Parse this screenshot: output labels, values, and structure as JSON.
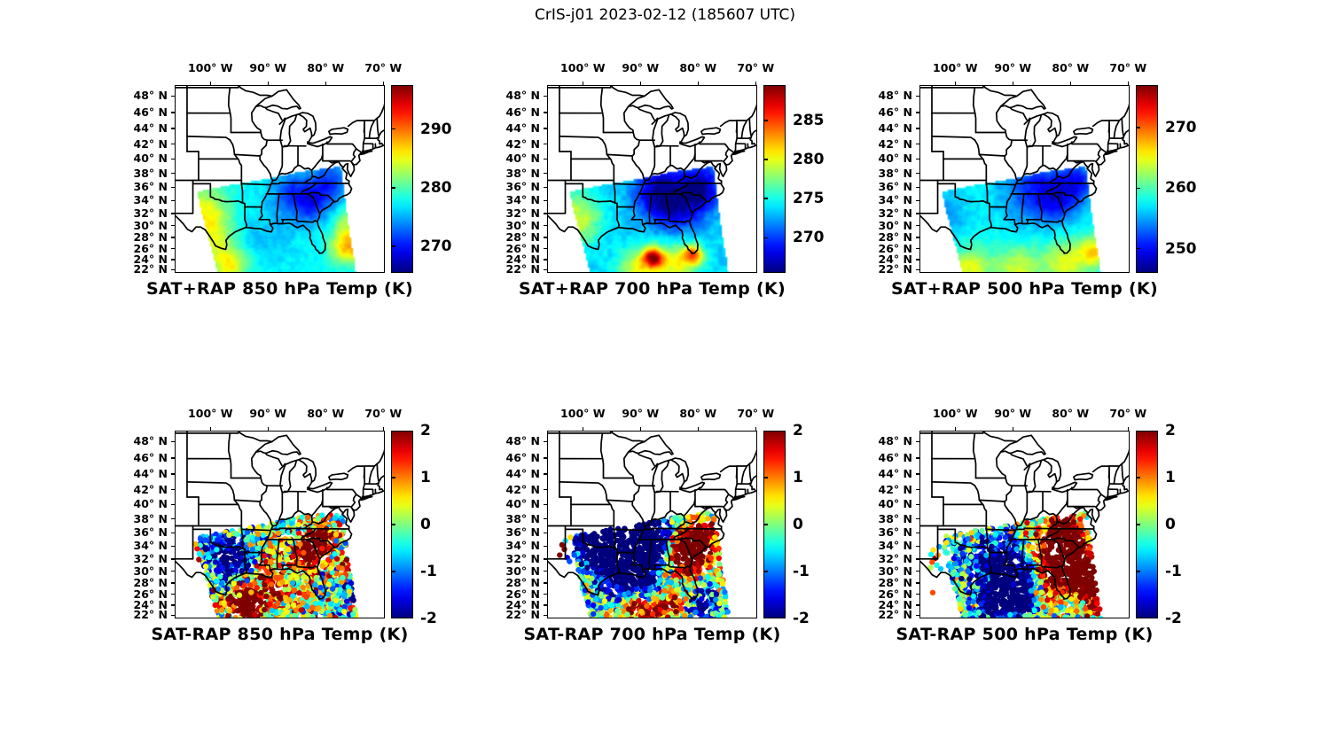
{
  "title": "CrIS-j01 2023-02-12 (185607 UTC)",
  "colors": {
    "outline": "#000000",
    "background": "#ffffff",
    "colormap_low": "#000080",
    "colormap_high": "#800000"
  },
  "axes": {
    "lon_labels": [
      "100° W",
      "90° W",
      "80° W",
      "70° W"
    ],
    "lon_values": [
      -100,
      -90,
      -80,
      -70
    ],
    "lat_labels": [
      "48° N",
      "46° N",
      "44° N",
      "42° N",
      "40° N",
      "38° N",
      "36° N",
      "34° N",
      "32° N",
      "30° N",
      "28° N",
      "26° N",
      "24° N",
      "22° N"
    ],
    "lat_values": [
      48,
      46,
      44,
      42,
      40,
      38,
      36,
      34,
      32,
      30,
      28,
      26,
      24,
      22
    ]
  },
  "chart_data": {
    "type": "heatmap",
    "colormap": "jet",
    "grid": false,
    "swath_polygon_lonlat": [
      [
        -102.3,
        35.35
      ],
      [
        -96.5,
        36.3
      ],
      [
        -90.0,
        37.2
      ],
      [
        -84.5,
        38.2
      ],
      [
        -77.2,
        38.95
      ],
      [
        -76.6,
        35.0
      ],
      [
        -75.9,
        30.0
      ],
      [
        -74.9,
        24.0
      ],
      [
        -74.6,
        21.0
      ],
      [
        -98.6,
        21.0
      ],
      [
        -99.3,
        24.0
      ],
      [
        -100.6,
        29.0
      ],
      [
        -101.6,
        32.5
      ]
    ],
    "panels": [
      {
        "id": "sat-plus-rap-850",
        "type": "heatmap",
        "row": 0,
        "col": 0,
        "title": "SAT+RAP 850 hPa Temp (K)",
        "pressure_hPa": 850,
        "units": "K",
        "colorbar": {
          "vmin": 265.5,
          "vmax": 297.5,
          "ticks": [
            290,
            280,
            270
          ],
          "tick_labels": [
            "290",
            "280",
            "270"
          ]
        },
        "base_value": 277.5,
        "noise_amp": 0.9,
        "field_regions": [
          {
            "lon": -101.0,
            "lat": 31.5,
            "sigma": 3.2,
            "delta": 8
          },
          {
            "lon": -99.5,
            "lat": 26.5,
            "sigma": 2.6,
            "delta": 4
          },
          {
            "lon": -96.5,
            "lat": 22.8,
            "sigma": 2.2,
            "delta": 8
          },
          {
            "lon": -82.5,
            "lat": 34.0,
            "sigma": 2.6,
            "delta": -7
          },
          {
            "lon": -78.8,
            "lat": 36.8,
            "sigma": 2.2,
            "delta": -5
          },
          {
            "lon": -86.5,
            "lat": 35.0,
            "sigma": 2.4,
            "delta": -4
          },
          {
            "lon": -90.0,
            "lat": 28.0,
            "sigma": 3.5,
            "delta": -2
          },
          {
            "lon": -75.8,
            "lat": 26.5,
            "sigma": 2.2,
            "delta": 11
          },
          {
            "lon": -76.5,
            "lat": 31.0,
            "sigma": 1.5,
            "delta": 4
          }
        ],
        "outlier_points": []
      },
      {
        "id": "sat-plus-rap-700",
        "type": "heatmap",
        "row": 0,
        "col": 1,
        "title": "SAT+RAP 700 hPa Temp (K)",
        "pressure_hPa": 700,
        "units": "K",
        "colorbar": {
          "vmin": 265.5,
          "vmax": 289.5,
          "ticks": [
            285,
            280,
            275,
            270
          ],
          "tick_labels": [
            "285",
            "280",
            "275",
            "270"
          ]
        },
        "base_value": 273.5,
        "noise_amp": 0.8,
        "field_regions": [
          {
            "lon": -101.0,
            "lat": 31.0,
            "sigma": 3.0,
            "delta": 6
          },
          {
            "lon": -83.5,
            "lat": 33.5,
            "sigma": 3.2,
            "delta": -6.5
          },
          {
            "lon": -79.3,
            "lat": 36.0,
            "sigma": 2.3,
            "delta": -6
          },
          {
            "lon": -87.5,
            "lat": 35.5,
            "sigma": 2.6,
            "delta": -5
          },
          {
            "lon": -93.0,
            "lat": 27.5,
            "sigma": 3.0,
            "delta": -0.5
          },
          {
            "lon": -90.0,
            "lat": 22.5,
            "sigma": 2.8,
            "delta": 6.5
          },
          {
            "lon": -83.5,
            "lat": 23.0,
            "sigma": 2.8,
            "delta": 6
          },
          {
            "lon": -87.7,
            "lat": 24.4,
            "sigma": 1.2,
            "delta": 12
          },
          {
            "lon": -80.8,
            "lat": 24.9,
            "sigma": 1.3,
            "delta": 9
          }
        ],
        "outlier_points": []
      },
      {
        "id": "sat-plus-rap-500",
        "type": "heatmap",
        "row": 0,
        "col": 2,
        "title": "SAT+RAP 500 hPa Temp (K)",
        "pressure_hPa": 500,
        "units": "K",
        "colorbar": {
          "vmin": 246,
          "vmax": 277,
          "ticks": [
            270,
            260,
            250
          ],
          "tick_labels": [
            "270",
            "260",
            "250"
          ]
        },
        "base_value": 257.5,
        "noise_amp": 0.85,
        "field_regions": [
          {
            "lon": -87.0,
            "lat": 35.5,
            "sigma": 3.6,
            "delta": -5.5
          },
          {
            "lon": -82.0,
            "lat": 34.5,
            "sigma": 2.8,
            "delta": -6.5
          },
          {
            "lon": -78.5,
            "lat": 36.8,
            "sigma": 2.0,
            "delta": -5.5
          },
          {
            "lon": -102.0,
            "lat": 31.5,
            "sigma": 2.8,
            "delta": -3
          },
          {
            "lon": -97.5,
            "lat": 22.5,
            "sigma": 2.6,
            "delta": 7
          },
          {
            "lon": -89.0,
            "lat": 22.0,
            "sigma": 3.0,
            "delta": 6.5
          },
          {
            "lon": -80.5,
            "lat": 23.5,
            "sigma": 2.8,
            "delta": 7
          },
          {
            "lon": -75.5,
            "lat": 25.5,
            "sigma": 2.0,
            "delta": 8
          }
        ],
        "outlier_points": []
      },
      {
        "id": "sat-minus-rap-850",
        "type": "scatter",
        "row": 1,
        "col": 0,
        "title": "SAT-RAP 850 hPa Temp (K)",
        "pressure_hPa": 850,
        "units": "K",
        "colorbar": {
          "vmin": -2,
          "vmax": 2,
          "ticks": [
            2,
            1,
            0,
            -1,
            -2
          ],
          "tick_labels": [
            "2",
            "1",
            "0",
            "-1",
            "-2"
          ]
        },
        "base_value": 0.1,
        "noise_amp": 1.5,
        "marker_radius_px": 3.2,
        "n_points": 1700,
        "field_regions": [
          {
            "lon": -95.5,
            "lat": 31.5,
            "sigma": 2.6,
            "delta": -2.6
          },
          {
            "lon": -98.5,
            "lat": 33.8,
            "sigma": 1.8,
            "delta": -2
          },
          {
            "lon": -82.6,
            "lat": 33.2,
            "sigma": 1.9,
            "delta": 3.2
          },
          {
            "lon": -80.3,
            "lat": 35.2,
            "sigma": 1.5,
            "delta": 2
          },
          {
            "lon": -90.0,
            "lat": 27.5,
            "sigma": 3.0,
            "delta": 1.8
          },
          {
            "lon": -95.0,
            "lat": 25.5,
            "sigma": 2.0,
            "delta": 1.5
          },
          {
            "lon": -93.5,
            "lat": 23.2,
            "sigma": 1.6,
            "delta": 2.6
          },
          {
            "lon": -75.5,
            "lat": 31.0,
            "sigma": 1.5,
            "delta": 2
          },
          {
            "lon": -75.6,
            "lat": 27.5,
            "sigma": 1.5,
            "delta": -2
          }
        ],
        "outlier_points": [
          {
            "lon": -102.3,
            "lat": 33.6,
            "value": 1.5
          },
          {
            "lon": -101.9,
            "lat": 32.8,
            "value": -0.5
          },
          {
            "lon": -102.6,
            "lat": 34.3,
            "value": 0.8
          },
          {
            "lon": -100.9,
            "lat": 34.9,
            "value": -1.2
          },
          {
            "lon": -102.0,
            "lat": 31.9,
            "value": 1.8
          }
        ]
      },
      {
        "id": "sat-minus-rap-700",
        "type": "scatter",
        "row": 1,
        "col": 1,
        "title": "SAT-RAP 700 hPa Temp (K)",
        "pressure_hPa": 700,
        "units": "K",
        "colorbar": {
          "vmin": -2,
          "vmax": 2,
          "ticks": [
            2,
            1,
            0,
            -1,
            -2
          ],
          "tick_labels": [
            "2",
            "1",
            "0",
            "-1",
            "-2"
          ]
        },
        "base_value": 0,
        "noise_amp": 1.1,
        "marker_radius_px": 3.2,
        "n_points": 1700,
        "field_regions": [
          {
            "lon": -94.0,
            "lat": 33.0,
            "sigma": 3.6,
            "delta": -3.6
          },
          {
            "lon": -98.0,
            "lat": 34.5,
            "sigma": 2.2,
            "delta": -3
          },
          {
            "lon": -88.5,
            "lat": 35.5,
            "sigma": 2.8,
            "delta": -3.2
          },
          {
            "lon": -91.0,
            "lat": 30.5,
            "sigma": 2.5,
            "delta": -2
          },
          {
            "lon": -92.0,
            "lat": 27.0,
            "sigma": 3.0,
            "delta": -1.4
          },
          {
            "lon": -82.0,
            "lat": 32.8,
            "sigma": 2.2,
            "delta": 3.8
          },
          {
            "lon": -79.8,
            "lat": 34.8,
            "sigma": 1.8,
            "delta": 3.3
          },
          {
            "lon": -91.0,
            "lat": 24.0,
            "sigma": 1.7,
            "delta": 2.8
          },
          {
            "lon": -84.8,
            "lat": 24.2,
            "sigma": 1.5,
            "delta": 2.4
          },
          {
            "lon": -88.0,
            "lat": 22.3,
            "sigma": 1.4,
            "delta": 2.4
          },
          {
            "lon": -78.8,
            "lat": 23.8,
            "sigma": 2.0,
            "delta": -2.2
          }
        ],
        "outlier_points": [
          {
            "lon": -103.6,
            "lat": 34.2,
            "value": 2
          },
          {
            "lon": -103.2,
            "lat": 33.5,
            "value": 2
          },
          {
            "lon": -102.7,
            "lat": 32.2,
            "value": -1.6
          },
          {
            "lon": -104.0,
            "lat": 32.6,
            "value": 2
          },
          {
            "lon": -102.3,
            "lat": 31.6,
            "value": -1.2
          },
          {
            "lon": -103.0,
            "lat": 34.8,
            "value": -0.6
          }
        ]
      },
      {
        "id": "sat-minus-rap-500",
        "type": "scatter",
        "row": 1,
        "col": 2,
        "title": "SAT-RAP 500 hPa Temp (K)",
        "pressure_hPa": 500,
        "units": "K",
        "colorbar": {
          "vmin": -2,
          "vmax": 2,
          "ticks": [
            2,
            1,
            0,
            -1,
            -2
          ],
          "tick_labels": [
            "2",
            "1",
            "0",
            "-1",
            "-2"
          ]
        },
        "base_value": 0,
        "noise_amp": 1.2,
        "marker_radius_px": 3.2,
        "n_points": 1700,
        "field_regions": [
          {
            "lon": -82.0,
            "lat": 32.5,
            "sigma": 2.8,
            "delta": 4.2
          },
          {
            "lon": -79.2,
            "lat": 30.3,
            "sigma": 2.4,
            "delta": 3.6
          },
          {
            "lon": -81.0,
            "lat": 35.8,
            "sigma": 1.8,
            "delta": 3.4
          },
          {
            "lon": -76.5,
            "lat": 28.5,
            "sigma": 1.8,
            "delta": 2.5
          },
          {
            "lon": -92.5,
            "lat": 31.0,
            "sigma": 3.4,
            "delta": -2.8
          },
          {
            "lon": -89.0,
            "lat": 27.0,
            "sigma": 2.6,
            "delta": -2.2
          },
          {
            "lon": -93.5,
            "lat": 24.0,
            "sigma": 1.8,
            "delta": -3
          },
          {
            "lon": -88.5,
            "lat": 23.5,
            "sigma": 2.0,
            "delta": -2
          },
          {
            "lon": -101.5,
            "lat": 32.0,
            "sigma": 2.4,
            "delta": -1
          },
          {
            "lon": -84.5,
            "lat": 25.5,
            "sigma": 1.8,
            "delta": 1.3
          },
          {
            "lon": -75.8,
            "lat": 24.5,
            "sigma": 1.6,
            "delta": 2
          }
        ],
        "outlier_points": [
          {
            "lon": -103.8,
            "lat": 33.4,
            "value": 0.6
          },
          {
            "lon": -104.2,
            "lat": 32.7,
            "value": -0.5
          },
          {
            "lon": -103.5,
            "lat": 32.1,
            "value": 2
          },
          {
            "lon": -104.0,
            "lat": 31.5,
            "value": 1.2
          },
          {
            "lon": -103.2,
            "lat": 31.0,
            "value": -0.4
          },
          {
            "lon": -102.8,
            "lat": 33.9,
            "value": -0.9
          },
          {
            "lon": -104.3,
            "lat": 30.6,
            "value": 0.2
          },
          {
            "lon": -103.9,
            "lat": 26.3,
            "value": 1.2
          },
          {
            "lon": -102.5,
            "lat": 30.4,
            "value": -0.7
          },
          {
            "lon": -103.0,
            "lat": 32.6,
            "value": 0.9
          }
        ]
      }
    ]
  }
}
